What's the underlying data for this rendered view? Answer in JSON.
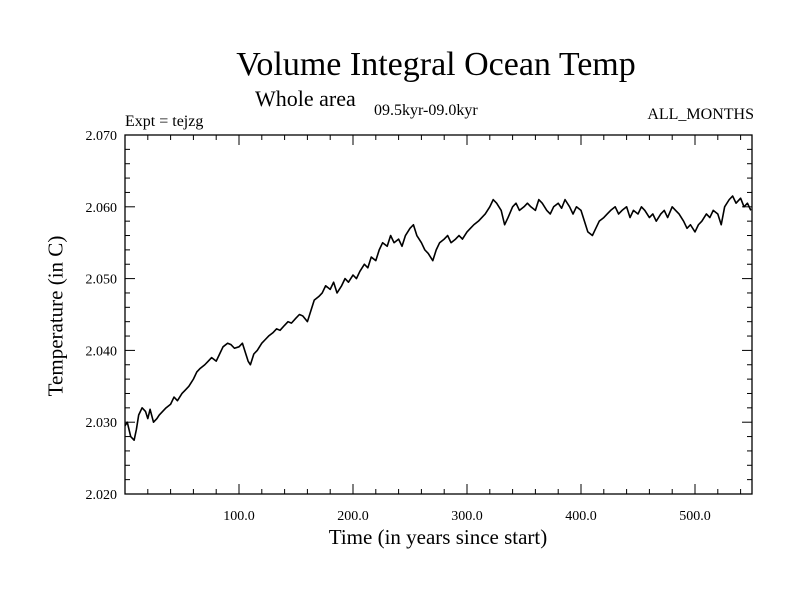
{
  "chart_data": {
    "type": "line",
    "title": "Volume Integral Ocean Temp",
    "subtitle": "Whole area",
    "period_label": "09.5kyr-09.0kyr",
    "experiment_label": "Expt = tejzg",
    "months_label": "ALL_MONTHS",
    "xlabel": "Time (in years since start)",
    "ylabel": "Temperature (in C)",
    "xlim": [
      0,
      550
    ],
    "ylim": [
      2.02,
      2.07
    ],
    "xticks": [
      100,
      200,
      300,
      400,
      500
    ],
    "xtick_labels": [
      "100.0",
      "200.0",
      "300.0",
      "400.0",
      "500.0"
    ],
    "yticks": [
      2.02,
      2.03,
      2.04,
      2.05,
      2.06,
      2.07
    ],
    "ytick_labels": [
      "2.020",
      "2.030",
      "2.040",
      "2.050",
      "2.060",
      "2.070"
    ],
    "series": [
      {
        "name": "Volume integral ocean temperature",
        "color": "#000000",
        "x": [
          0,
          2,
          5,
          8,
          10,
          12,
          15,
          18,
          20,
          22,
          25,
          28,
          30,
          33,
          36,
          40,
          43,
          46,
          50,
          53,
          56,
          60,
          63,
          66,
          70,
          73,
          76,
          80,
          83,
          86,
          90,
          93,
          96,
          100,
          103,
          106,
          108,
          110,
          113,
          116,
          120,
          123,
          126,
          130,
          133,
          136,
          140,
          143,
          146,
          150,
          153,
          156,
          160,
          163,
          166,
          170,
          173,
          176,
          180,
          183,
          186,
          190,
          193,
          196,
          200,
          203,
          206,
          210,
          213,
          216,
          220,
          223,
          226,
          230,
          233,
          236,
          240,
          243,
          246,
          250,
          253,
          256,
          260,
          263,
          266,
          270,
          273,
          276,
          280,
          283,
          286,
          290,
          293,
          296,
          300,
          303,
          306,
          310,
          313,
          316,
          320,
          323,
          326,
          330,
          333,
          336,
          340,
          343,
          346,
          350,
          353,
          356,
          360,
          363,
          366,
          370,
          373,
          376,
          380,
          383,
          386,
          390,
          393,
          396,
          400,
          403,
          406,
          410,
          413,
          416,
          420,
          423,
          426,
          430,
          433,
          436,
          440,
          443,
          446,
          450,
          453,
          456,
          460,
          463,
          466,
          470,
          473,
          476,
          480,
          483,
          486,
          490,
          493,
          496,
          500,
          503,
          506,
          510,
          513,
          516,
          520,
          523,
          526,
          530,
          533,
          536,
          540,
          543,
          546,
          549
        ],
        "values": [
          2.0295,
          2.03,
          2.028,
          2.0275,
          2.029,
          2.031,
          2.032,
          2.0315,
          2.0305,
          2.0318,
          2.03,
          2.0305,
          2.031,
          2.0315,
          2.032,
          2.0325,
          2.0335,
          2.033,
          2.034,
          2.0345,
          2.035,
          2.036,
          2.037,
          2.0375,
          2.038,
          2.0385,
          2.039,
          2.0385,
          2.0395,
          2.0405,
          2.041,
          2.0408,
          2.0403,
          2.0405,
          2.041,
          2.0395,
          2.0385,
          2.038,
          2.0395,
          2.04,
          2.041,
          2.0415,
          2.042,
          2.0425,
          2.043,
          2.0428,
          2.0435,
          2.044,
          2.0438,
          2.0445,
          2.045,
          2.0448,
          2.044,
          2.0455,
          2.047,
          2.0475,
          2.048,
          2.049,
          2.0485,
          2.0495,
          2.048,
          2.049,
          2.05,
          2.0495,
          2.0505,
          2.05,
          2.051,
          2.052,
          2.0515,
          2.053,
          2.0525,
          2.054,
          2.055,
          2.0545,
          2.056,
          2.055,
          2.0555,
          2.0545,
          2.056,
          2.057,
          2.0575,
          2.056,
          2.055,
          2.054,
          2.0535,
          2.0525,
          2.054,
          2.055,
          2.0555,
          2.056,
          2.055,
          2.0555,
          2.056,
          2.0555,
          2.0565,
          2.057,
          2.0575,
          2.058,
          2.0585,
          2.059,
          2.06,
          2.061,
          2.0605,
          2.0595,
          2.0575,
          2.0585,
          2.06,
          2.0605,
          2.0595,
          2.06,
          2.0605,
          2.06,
          2.0595,
          2.061,
          2.0605,
          2.0595,
          2.059,
          2.06,
          2.0605,
          2.0598,
          2.061,
          2.06,
          2.059,
          2.06,
          2.0595,
          2.058,
          2.0565,
          2.056,
          2.057,
          2.058,
          2.0585,
          2.059,
          2.0595,
          2.06,
          2.059,
          2.0595,
          2.06,
          2.0585,
          2.0595,
          2.059,
          2.06,
          2.0595,
          2.0585,
          2.059,
          2.058,
          2.059,
          2.0595,
          2.0585,
          2.06,
          2.0595,
          2.059,
          2.058,
          2.057,
          2.0575,
          2.0565,
          2.0575,
          2.058,
          2.059,
          2.0585,
          2.0595,
          2.059,
          2.0575,
          2.06,
          2.061,
          2.0615,
          2.0605,
          2.0612,
          2.06,
          2.0605,
          2.0595
        ]
      }
    ]
  }
}
